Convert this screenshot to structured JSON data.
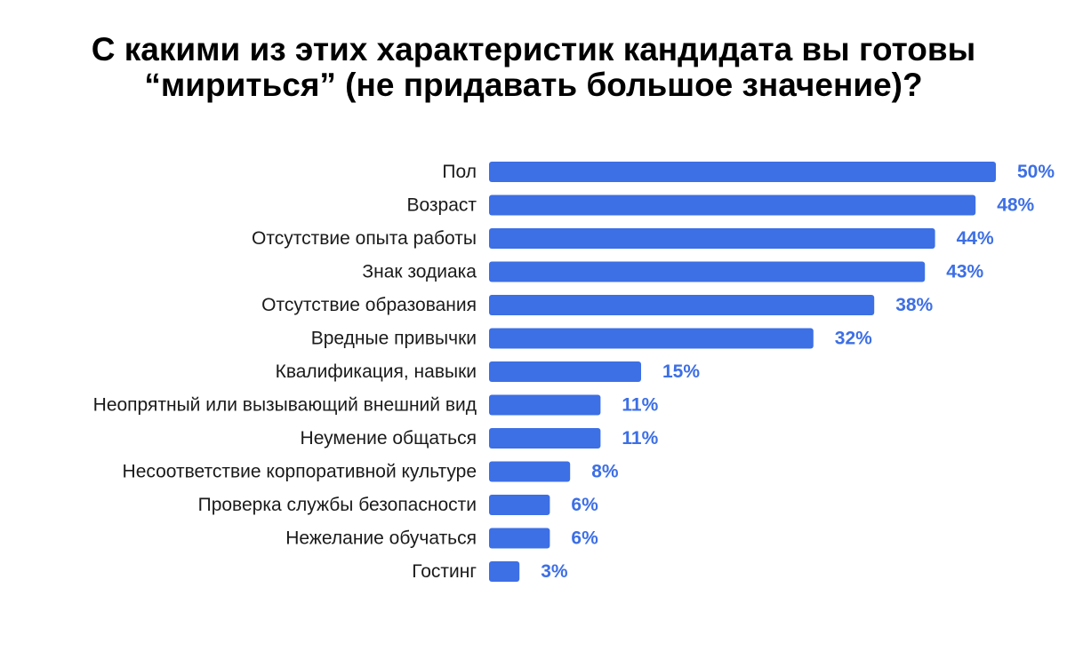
{
  "chart_data": {
    "type": "bar",
    "orientation": "horizontal",
    "title_lines": [
      "С какими из этих характеристик кандидата вы готовы",
      "“мириться” (не придавать большое значение)?"
    ],
    "xlabel": "",
    "ylabel": "",
    "value_suffix": "%",
    "grid": false,
    "legend": "none",
    "xlim": [
      0,
      50
    ],
    "categories": [
      "Пол",
      "Возраст",
      "Отсутствие опыта работы",
      "Знак зодиака",
      "Отсутствие образования",
      "Вредные привычки",
      "Квалификация, навыки",
      "Неопрятный или вызывающий внешний вид",
      "Неумение общаться",
      "Несоответствие корпоративной культуре",
      "Проверка службы безопасности",
      "Нежелание обучаться",
      "Гостинг"
    ],
    "values": [
      50,
      48,
      44,
      43,
      38,
      32,
      15,
      11,
      11,
      8,
      6,
      6,
      3
    ],
    "value_labels": [
      "50%",
      "48%",
      "44%",
      "43%",
      "38%",
      "32%",
      "15%",
      "11%",
      "11%",
      "8%",
      "6%",
      "6%",
      "3%"
    ]
  },
  "colors": {
    "bar": "#3d6fe5",
    "value_label": "#3d6fe5",
    "category_label": "#1a1a1a",
    "title": "#000000",
    "background": "#ffffff"
  }
}
